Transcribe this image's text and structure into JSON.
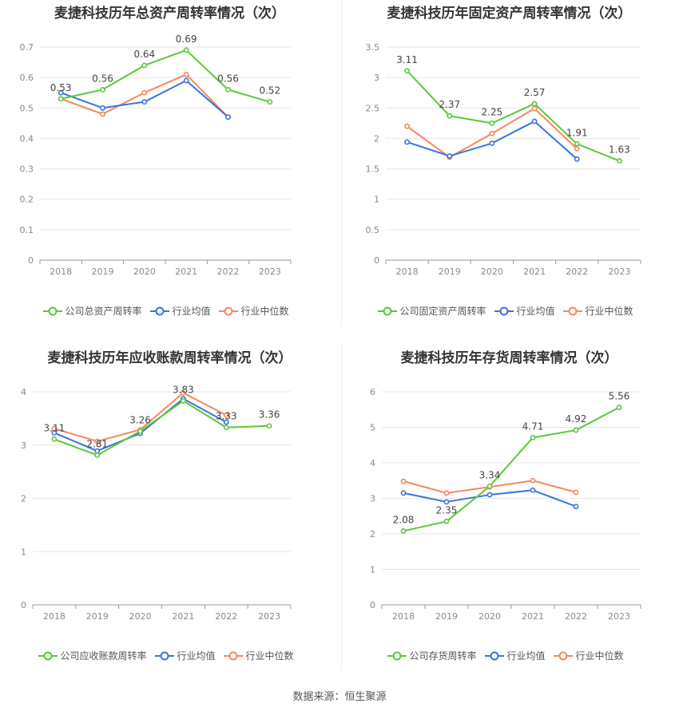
{
  "source_label": "数据来源：恒生聚源",
  "legend_common": {
    "industry_avg": "行业均值",
    "industry_median": "行业中位数"
  },
  "colors": {
    "company": "#5cc73a",
    "industry_avg": "#3a74d9",
    "industry_median": "#f5875e",
    "grid": "#e6e6e6",
    "axis": "#999999",
    "tick_text": "#8a8a8a"
  },
  "chart_data": [
    {
      "type": "line",
      "title": "麦捷科技历年总资产周转率情况（次）",
      "categories": [
        "2018",
        "2019",
        "2020",
        "2021",
        "2022",
        "2023"
      ],
      "ylim": [
        0,
        0.7
      ],
      "yticks": [
        "0",
        "0.1",
        "0.2",
        "0.3",
        "0.4",
        "0.5",
        "0.6",
        "0.7"
      ],
      "series": [
        {
          "name": "公司总资产周转率",
          "key": "company",
          "values": [
            0.53,
            0.56,
            0.64,
            0.69,
            0.56,
            0.52
          ],
          "labels": [
            "0.53",
            "0.56",
            "0.64",
            "0.69",
            "0.56",
            "0.52"
          ]
        },
        {
          "name": "行业均值",
          "key": "industry_avg",
          "values": [
            0.55,
            0.5,
            0.52,
            0.59,
            0.47,
            null
          ]
        },
        {
          "name": "行业中位数",
          "key": "industry_median",
          "values": [
            0.53,
            0.48,
            0.55,
            0.61,
            0.47,
            null
          ]
        }
      ],
      "grid": true,
      "legend_position": "bottom"
    },
    {
      "type": "line",
      "title": "麦捷科技历年固定资产周转率情况（次）",
      "categories": [
        "2018",
        "2019",
        "2020",
        "2021",
        "2022",
        "2023"
      ],
      "ylim": [
        0,
        3.5
      ],
      "yticks": [
        "0",
        "0.5",
        "1",
        "1.5",
        "2",
        "2.5",
        "3",
        "3.5"
      ],
      "series": [
        {
          "name": "公司固定资产周转率",
          "key": "company",
          "values": [
            3.11,
            2.37,
            2.25,
            2.57,
            1.91,
            1.63
          ],
          "labels": [
            "3.11",
            "2.37",
            "2.25",
            "2.57",
            "1.91",
            "1.63"
          ]
        },
        {
          "name": "行业均值",
          "key": "industry_avg",
          "values": [
            1.94,
            1.71,
            1.92,
            2.28,
            1.66,
            null
          ]
        },
        {
          "name": "行业中位数",
          "key": "industry_median",
          "values": [
            2.2,
            1.69,
            2.08,
            2.49,
            1.83,
            null
          ]
        }
      ],
      "grid": true,
      "legend_position": "bottom"
    },
    {
      "type": "line",
      "title": "麦捷科技历年应收账款周转率情况（次）",
      "categories": [
        "2018",
        "2019",
        "2020",
        "2021",
        "2022",
        "2023"
      ],
      "ylim": [
        0,
        4
      ],
      "yticks": [
        "0",
        "1",
        "2",
        "3",
        "4"
      ],
      "series": [
        {
          "name": "公司应收账款周转率",
          "key": "company",
          "values": [
            3.11,
            2.81,
            3.26,
            3.83,
            3.33,
            3.36
          ],
          "labels": [
            "3.11",
            "2.81",
            "3.26",
            "3.83",
            "3.33",
            "3.36"
          ]
        },
        {
          "name": "行业均值",
          "key": "industry_avg",
          "values": [
            3.23,
            2.89,
            3.22,
            3.87,
            3.43,
            null
          ]
        },
        {
          "name": "行业中位数",
          "key": "industry_median",
          "values": [
            3.31,
            3.07,
            3.29,
            3.98,
            3.56,
            null
          ]
        }
      ],
      "grid": true,
      "legend_position": "bottom"
    },
    {
      "type": "line",
      "title": "麦捷科技历年存货周转率情况（次）",
      "categories": [
        "2018",
        "2019",
        "2020",
        "2021",
        "2022",
        "2023"
      ],
      "ylim": [
        0,
        6
      ],
      "yticks": [
        "0",
        "1",
        "2",
        "3",
        "4",
        "5",
        "6"
      ],
      "series": [
        {
          "name": "公司存货周转率",
          "key": "company",
          "values": [
            2.08,
            2.35,
            3.34,
            4.71,
            4.92,
            5.56
          ],
          "labels": [
            "2.08",
            "2.35",
            "3.34",
            "4.71",
            "4.92",
            "5.56"
          ]
        },
        {
          "name": "行业均值",
          "key": "industry_avg",
          "values": [
            3.15,
            2.9,
            3.1,
            3.23,
            2.77,
            null
          ]
        },
        {
          "name": "行业中位数",
          "key": "industry_median",
          "values": [
            3.48,
            3.15,
            3.32,
            3.5,
            3.17,
            null
          ]
        }
      ],
      "grid": true,
      "legend_position": "bottom"
    }
  ]
}
